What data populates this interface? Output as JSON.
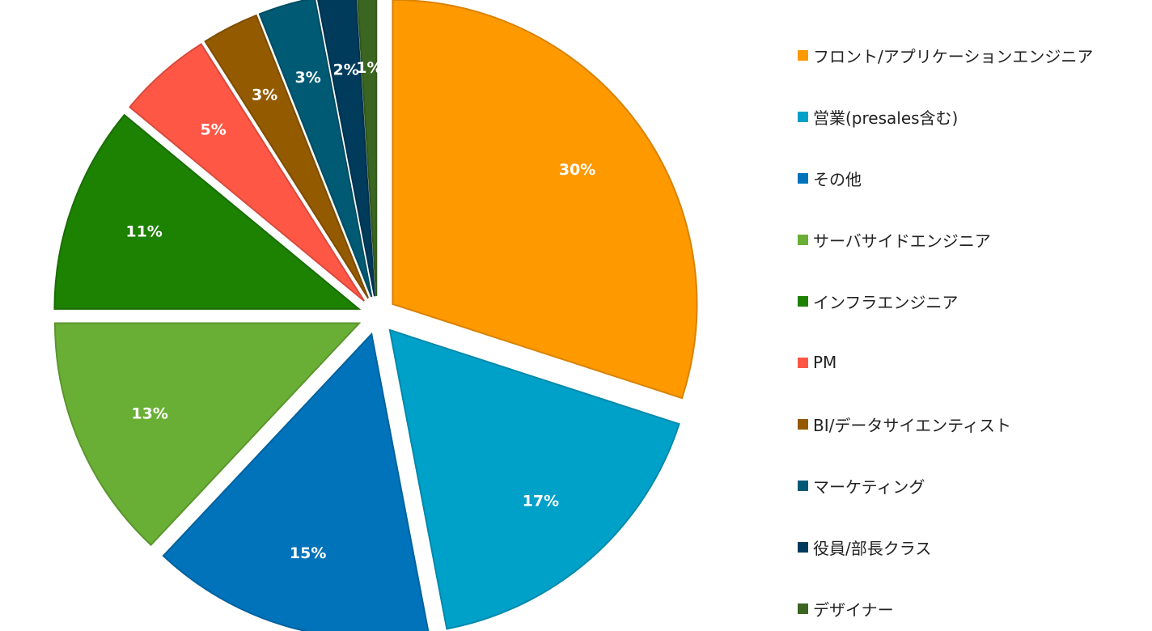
{
  "chart_data": {
    "type": "pie",
    "exploded": true,
    "start_angle_deg": 0,
    "direction": "clockwise",
    "legend_position": "right",
    "categories": [
      "フロント/アプリケーションエンジニア",
      "営業(presales含む)",
      "その他",
      "サーバサイドエンジニア",
      "インフラエンジニア",
      "PM",
      "BI/データサイエンティスト",
      "マーケティング",
      "役員/部長クラス",
      "デザイナー"
    ],
    "values": [
      30,
      17,
      15,
      13,
      11,
      5,
      3,
      3,
      2,
      1
    ],
    "labels": [
      "30%",
      "17%",
      "15%",
      "13%",
      "11%",
      "5%",
      "3%",
      "3%",
      "2%",
      "1%"
    ],
    "colors": [
      "#FF9900",
      "#00A1C9",
      "#0073BB",
      "#6AAF35",
      "#1D8102",
      "#FF5746",
      "#945A00",
      "#005A73",
      "#003B5C",
      "#3B6622"
    ]
  }
}
